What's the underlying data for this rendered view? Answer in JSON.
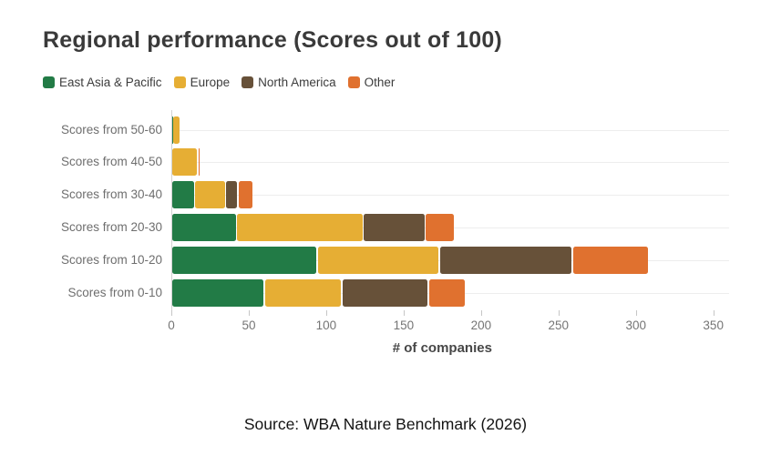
{
  "title": "Regional performance (Scores out of 100)",
  "source": "Source: WBA Nature Benchmark (2026)",
  "colors": {
    "title_text": "#3a3a3a",
    "category_label": "#6e6e6e",
    "tick_label": "#757575",
    "gridline": "#ededed",
    "axis_line": "#d2d2d2",
    "background": "#ffffff"
  },
  "chart_data": {
    "type": "bar",
    "orientation": "horizontal",
    "stacked": true,
    "title": "Regional performance (Scores out of 100)",
    "xlabel": "# of companies",
    "ylabel": "",
    "xlim": [
      0,
      350
    ],
    "xticks": [
      0,
      50,
      100,
      150,
      200,
      250,
      300,
      350
    ],
    "grid": "horizontal-row-lines",
    "legend_position": "top-left",
    "categories": [
      "Scores from 50-60",
      "Scores from 40-50",
      "Scores from 30-40",
      "Scores from 20-30",
      "Scores from 10-20",
      "Scores from 0-10"
    ],
    "series": [
      {
        "name": "East Asia & Pacific",
        "color": "#227b46",
        "values": [
          1,
          0,
          15,
          42,
          94,
          60
        ]
      },
      {
        "name": "Europe",
        "color": "#e6ae34",
        "values": [
          5,
          17,
          20,
          82,
          79,
          50
        ]
      },
      {
        "name": "North America",
        "color": "#675139",
        "values": [
          0,
          0,
          8,
          40,
          86,
          56
        ]
      },
      {
        "name": "Other",
        "color": "#e0712f",
        "values": [
          0,
          1,
          10,
          19,
          49,
          24
        ]
      }
    ],
    "category_totals": [
      6,
      18,
      53,
      183,
      308,
      190
    ]
  }
}
